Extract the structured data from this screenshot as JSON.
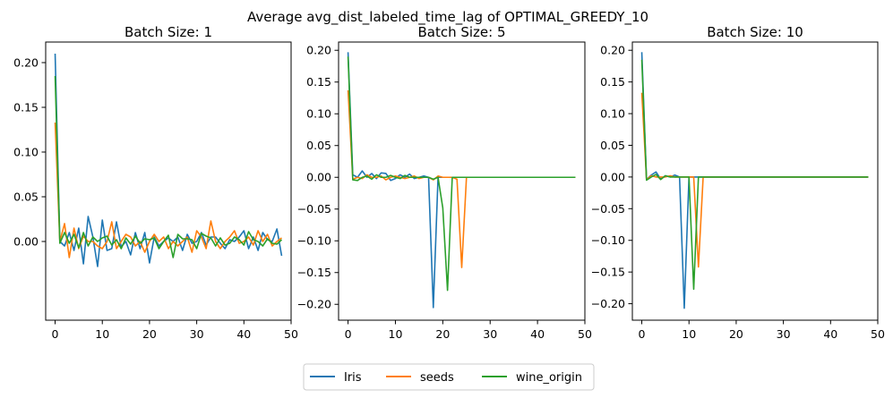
{
  "suptitle": "Average avg_dist_labeled_time_lag of OPTIMAL_GREEDY_10",
  "colors": {
    "Iris": "#1f77b4",
    "seeds": "#ff7f0e",
    "wine_origin": "#2ca02c"
  },
  "legend": {
    "placement": "bottom-center",
    "entries": [
      "Iris",
      "seeds",
      "wine_origin"
    ]
  },
  "chart_data": [
    {
      "type": "line",
      "title": "Batch Size: 1",
      "xlim": [
        -2,
        50
      ],
      "ylim": [
        -0.088,
        0.223
      ],
      "xticks": [
        0,
        10,
        20,
        30,
        40,
        50
      ],
      "yticks": [
        0.2,
        0.15,
        0.1,
        0.05,
        0.0
      ],
      "ytick_labels": [
        "0.20",
        "0.15",
        "0.10",
        "0.05",
        "0.00"
      ],
      "series": [
        {
          "name": "Iris",
          "values": [
            0.21,
            0.0,
            -0.005,
            0.01,
            -0.01,
            0.015,
            -0.025,
            0.028,
            0.005,
            -0.028,
            0.024,
            -0.01,
            -0.008,
            0.022,
            -0.006,
            0.0,
            -0.015,
            0.01,
            -0.008,
            0.01,
            -0.024,
            0.005,
            -0.005,
            0.0,
            0.004,
            0.0,
            0.005,
            -0.01,
            0.008,
            -0.002,
            0.0,
            0.01,
            -0.004,
            0.005,
            0.005,
            -0.002,
            -0.008,
            0.002,
            0.0,
            0.005,
            0.012,
            -0.008,
            0.005,
            -0.01,
            0.01,
            0.002,
            0.0,
            0.014,
            -0.016
          ]
        },
        {
          "name": "seeds",
          "values": [
            0.133,
            0.0,
            0.02,
            -0.018,
            0.015,
            -0.008,
            0.006,
            0.0,
            0.0,
            -0.005,
            -0.008,
            0.0,
            0.022,
            -0.008,
            0.0,
            0.008,
            0.005,
            -0.005,
            0.0,
            -0.012,
            0.0,
            0.008,
            0.0,
            0.005,
            -0.008,
            0.0,
            -0.005,
            0.0,
            0.005,
            -0.012,
            0.012,
            0.005,
            -0.008,
            0.023,
            0.0,
            -0.008,
            0.0,
            0.005,
            0.012,
            -0.002,
            0.0,
            0.005,
            -0.004,
            0.012,
            0.0,
            0.008,
            -0.005,
            0.0,
            0.004
          ]
        },
        {
          "name": "wine_origin",
          "values": [
            0.185,
            -0.002,
            0.01,
            -0.002,
            0.008,
            -0.007,
            0.01,
            -0.005,
            0.005,
            0.0,
            0.004,
            0.006,
            -0.004,
            0.002,
            -0.008,
            0.004,
            -0.003,
            0.006,
            -0.002,
            0.003,
            0.002,
            0.004,
            -0.008,
            0.0,
            0.007,
            -0.018,
            0.008,
            0.003,
            0.003,
            0.002,
            -0.008,
            0.009,
            0.006,
            0.004,
            -0.005,
            0.004,
            -0.004,
            -0.002,
            0.005,
            0.002,
            -0.004,
            0.011,
            0.002,
            0.0,
            -0.005,
            0.003,
            -0.002,
            -0.003,
            0.002
          ]
        }
      ]
    },
    {
      "type": "line",
      "title": "Batch Size: 5",
      "xlim": [
        -2,
        50
      ],
      "ylim": [
        -0.225,
        0.213
      ],
      "xticks": [
        0,
        10,
        20,
        30,
        40,
        50
      ],
      "yticks": [
        0.2,
        0.15,
        0.1,
        0.05,
        0.0,
        -0.05,
        -0.1,
        -0.15,
        -0.2
      ],
      "ytick_labels": [
        "0.20",
        "0.15",
        "0.10",
        "0.05",
        "0.00",
        "−0.05",
        "−0.10",
        "−0.15",
        "−0.20"
      ],
      "series": [
        {
          "name": "Iris",
          "values": [
            0.197,
            0.004,
            0.0,
            0.01,
            0.0,
            0.006,
            -0.002,
            0.007,
            0.006,
            -0.005,
            -0.002,
            0.004,
            0.0,
            0.005,
            -0.002,
            0.0,
            0.002,
            0.0,
            -0.205,
            0.0,
            0.0,
            0.0,
            0.0,
            0.0,
            0.0,
            0.0,
            0.0,
            0.0,
            0.0,
            0.0,
            0.0,
            0.0,
            0.0,
            0.0,
            0.0,
            0.0,
            0.0,
            0.0,
            0.0,
            0.0,
            0.0,
            0.0,
            0.0,
            0.0,
            0.0,
            0.0,
            0.0,
            0.0,
            0.0
          ]
        },
        {
          "name": "seeds",
          "values": [
            0.137,
            -0.003,
            0.0,
            -0.002,
            0.004,
            0.0,
            0.0,
            0.002,
            -0.004,
            0.0,
            0.002,
            0.0,
            -0.002,
            0.0,
            0.002,
            -0.002,
            0.0,
            0.0,
            -0.004,
            0.002,
            0.0,
            0.0,
            0.0,
            -0.003,
            -0.142,
            0.0,
            0.0,
            0.0,
            0.0,
            0.0,
            0.0,
            0.0,
            0.0,
            0.0,
            0.0,
            0.0,
            0.0,
            0.0,
            0.0,
            0.0,
            0.0,
            0.0,
            0.0,
            0.0,
            0.0,
            0.0,
            0.0,
            0.0,
            0.0
          ]
        },
        {
          "name": "wine_origin",
          "values": [
            0.19,
            -0.004,
            -0.005,
            0.0,
            0.002,
            -0.003,
            0.004,
            0.0,
            0.0,
            0.003,
            0.0,
            -0.002,
            0.003,
            0.0,
            0.0,
            0.0,
            0.0,
            0.0,
            -0.003,
            0.0,
            -0.048,
            -0.178,
            0.0,
            0.0,
            0.0,
            0.0,
            0.0,
            0.0,
            0.0,
            0.0,
            0.0,
            0.0,
            0.0,
            0.0,
            0.0,
            0.0,
            0.0,
            0.0,
            0.0,
            0.0,
            0.0,
            0.0,
            0.0,
            0.0,
            0.0,
            0.0,
            0.0,
            0.0,
            0.0
          ]
        }
      ]
    },
    {
      "type": "line",
      "title": "Batch Size: 10",
      "xlim": [
        -2,
        50
      ],
      "ylim": [
        -0.226,
        0.213
      ],
      "xticks": [
        0,
        10,
        20,
        30,
        40,
        50
      ],
      "yticks": [
        0.2,
        0.15,
        0.1,
        0.05,
        0.0,
        -0.05,
        -0.1,
        -0.15,
        -0.2
      ],
      "ytick_labels": [
        "0.20",
        "0.15",
        "0.10",
        "0.05",
        "0.00",
        "−0.05",
        "−0.10",
        "−0.15",
        "−0.20"
      ],
      "series": [
        {
          "name": "Iris",
          "values": [
            0.197,
            -0.004,
            0.003,
            0.008,
            -0.003,
            0.002,
            0.0,
            0.003,
            0.0,
            -0.207,
            0.0,
            0.0,
            0.0,
            0.0,
            0.0,
            0.0,
            0.0,
            0.0,
            0.0,
            0.0,
            0.0,
            0.0,
            0.0,
            0.0,
            0.0,
            0.0,
            0.0,
            0.0,
            0.0,
            0.0,
            0.0,
            0.0,
            0.0,
            0.0,
            0.0,
            0.0,
            0.0,
            0.0,
            0.0,
            0.0,
            0.0,
            0.0,
            0.0,
            0.0,
            0.0,
            0.0,
            0.0,
            0.0,
            0.0
          ]
        },
        {
          "name": "seeds",
          "values": [
            0.133,
            -0.004,
            0.002,
            0.0,
            0.0,
            0.0,
            0.002,
            0.0,
            0.0,
            0.0,
            0.0,
            0.0,
            -0.142,
            0.0,
            0.0,
            0.0,
            0.0,
            0.0,
            0.0,
            0.0,
            0.0,
            0.0,
            0.0,
            0.0,
            0.0,
            0.0,
            0.0,
            0.0,
            0.0,
            0.0,
            0.0,
            0.0,
            0.0,
            0.0,
            0.0,
            0.0,
            0.0,
            0.0,
            0.0,
            0.0,
            0.0,
            0.0,
            0.0,
            0.0,
            0.0,
            0.0,
            0.0,
            0.0,
            0.0
          ]
        },
        {
          "name": "wine_origin",
          "values": [
            0.185,
            -0.005,
            0.0,
            0.004,
            -0.004,
            0.002,
            0.0,
            0.0,
            0.0,
            0.0,
            0.0,
            -0.177,
            0.0,
            0.0,
            0.0,
            0.0,
            0.0,
            0.0,
            0.0,
            0.0,
            0.0,
            0.0,
            0.0,
            0.0,
            0.0,
            0.0,
            0.0,
            0.0,
            0.0,
            0.0,
            0.0,
            0.0,
            0.0,
            0.0,
            0.0,
            0.0,
            0.0,
            0.0,
            0.0,
            0.0,
            0.0,
            0.0,
            0.0,
            0.0,
            0.0,
            0.0,
            0.0,
            0.0,
            0.0
          ]
        }
      ]
    }
  ]
}
